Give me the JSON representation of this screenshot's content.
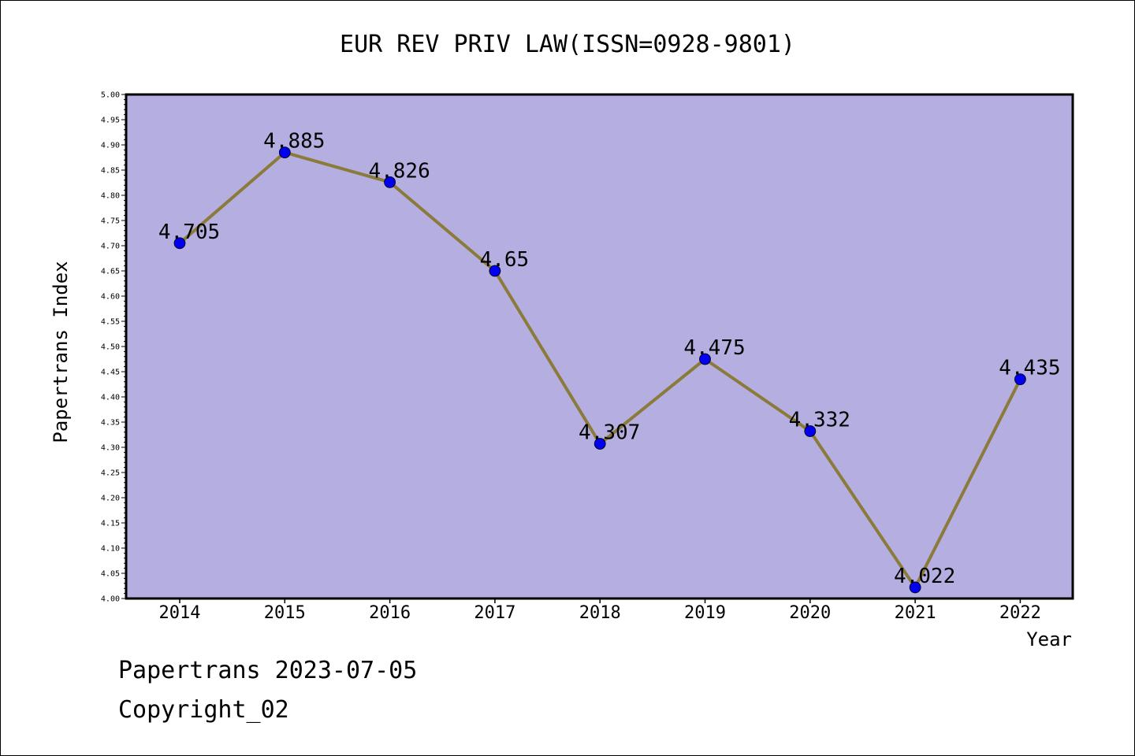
{
  "chart_data": {
    "type": "line",
    "title": "EUR REV PRIV LAW(ISSN=0928-9801)",
    "xlabel": "Year",
    "ylabel": "Papertrans Index",
    "categories": [
      "2014",
      "2015",
      "2016",
      "2017",
      "2018",
      "2019",
      "2020",
      "2021",
      "2022"
    ],
    "values": [
      4.705,
      4.885,
      4.826,
      4.65,
      4.307,
      4.475,
      4.332,
      4.022,
      4.435
    ],
    "data_labels": [
      "4.705",
      "4.885",
      "4.826",
      "4.65",
      "4.307",
      "4.475",
      "4.332",
      "4.022",
      "4.435"
    ],
    "ylim": [
      4.0,
      5.0
    ],
    "ytick_step": 0.05,
    "yticks": [
      "4.00",
      "4.05",
      "4.10",
      "4.15",
      "4.20",
      "4.25",
      "4.30",
      "4.35",
      "4.40",
      "4.45",
      "4.50",
      "4.55",
      "4.60",
      "4.65",
      "4.70",
      "4.75",
      "4.80",
      "4.85",
      "4.90",
      "4.95",
      "5.00"
    ],
    "grid": false,
    "legend": "none",
    "colors": {
      "plot_background": "#b5aee0",
      "line": "#8b7b3a",
      "marker": "#0000ee",
      "axis": "#000000"
    }
  },
  "footer": {
    "line1": "Papertrans 2023-07-05",
    "line2": "Copyright_02"
  }
}
